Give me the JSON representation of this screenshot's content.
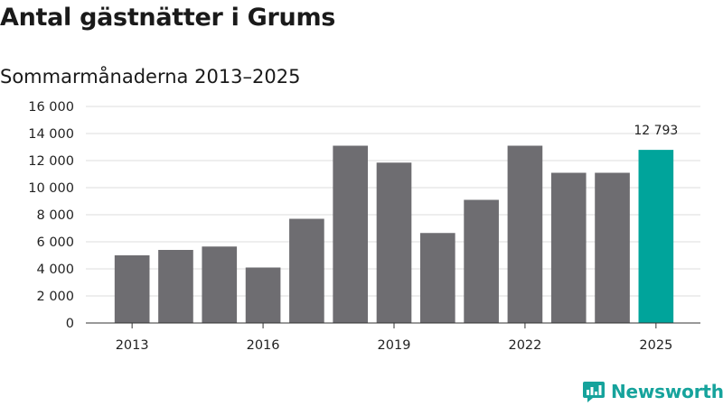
{
  "chart_data": {
    "type": "bar",
    "title": "Antal gästnätter i Grums",
    "subtitle": "Sommarmånaderna 2013–2025",
    "categories": [
      "2013",
      "2014",
      "2015",
      "2016",
      "2017",
      "2018",
      "2019",
      "2020",
      "2021",
      "2022",
      "2023",
      "2024",
      "2025"
    ],
    "values": [
      5000,
      5400,
      5650,
      4100,
      7700,
      13100,
      11850,
      6650,
      9100,
      13100,
      11100,
      11100,
      12793
    ],
    "x_tick_labels": [
      "2013",
      "2016",
      "2019",
      "2022",
      "2025"
    ],
    "y_ticks": [
      0,
      2000,
      4000,
      6000,
      8000,
      10000,
      12000,
      14000,
      16000
    ],
    "y_tick_labels": [
      "0",
      "2 000",
      "4 000",
      "6 000",
      "8 000",
      "10 000",
      "12 000",
      "14 000",
      "16 000"
    ],
    "ylim": [
      0,
      16000
    ],
    "grid": true,
    "bar_color": "#6e6d71",
    "highlight_category": "2025",
    "highlight_color": "#00a49b",
    "data_labels": [
      {
        "category": "2025",
        "text": "12 793"
      }
    ]
  },
  "branding": {
    "name": "Newsworthy",
    "logo_icon": "bar-chart-speech-bubble-icon",
    "color": "#16a39c"
  }
}
